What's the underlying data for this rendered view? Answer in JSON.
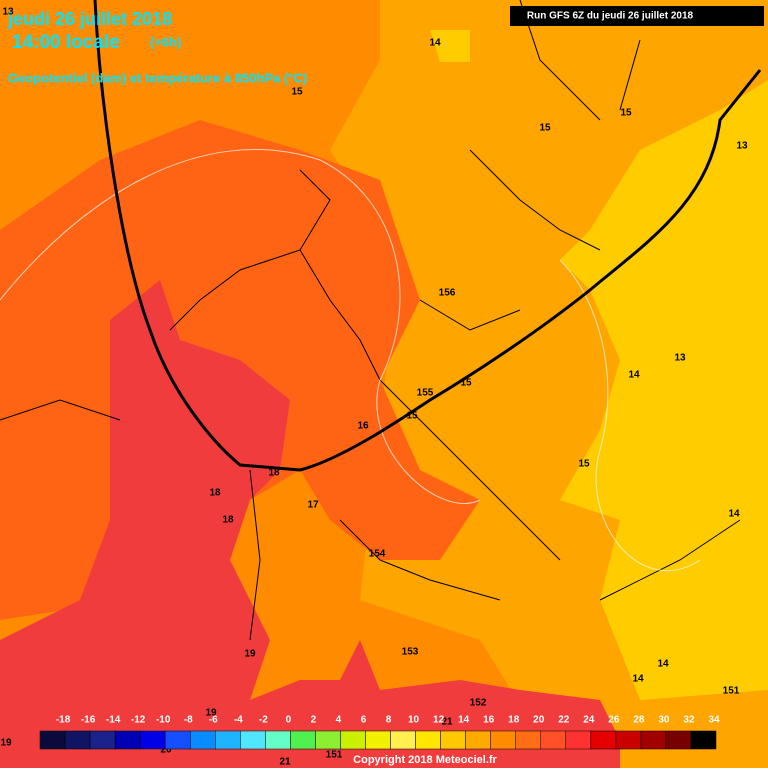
{
  "header": {
    "date": "jeudi 26 juillet 2018",
    "time": "14:00 locale",
    "offset": "(+6h)",
    "subtitle": "Geopotentiel (dam) et température à 850hPa (°C)",
    "run": "Run GFS 6Z du jeudi 26 juillet 2018"
  },
  "labels": [
    "13",
    "14",
    "15",
    "15",
    "15",
    "13",
    "156",
    "13",
    "14",
    "15",
    "155",
    "16",
    "15",
    "15",
    "18",
    "18",
    "17",
    "18",
    "14",
    "154",
    "19",
    "153",
    "14",
    "14",
    "151",
    "152",
    "19",
    "21",
    "151",
    "20",
    "21",
    "19"
  ],
  "legend": {
    "values": [
      -18,
      -16,
      -14,
      -12,
      -10,
      -8,
      -6,
      -4,
      -2,
      0,
      2,
      4,
      6,
      8,
      10,
      12,
      14,
      16,
      18,
      20,
      22,
      24,
      26,
      28,
      30,
      32,
      34
    ],
    "colors": [
      "#0a0a3c",
      "#0f1464",
      "#1a238c",
      "#0000b4",
      "#0000e6",
      "#1450ff",
      "#0a8cff",
      "#1eb4ff",
      "#50e6ff",
      "#64ffc8",
      "#50f050",
      "#8cf032",
      "#c8f000",
      "#f0f000",
      "#fff050",
      "#ffe600",
      "#ffc800",
      "#ffaa00",
      "#ff8c00",
      "#ff6e14",
      "#ff5028",
      "#ff3232",
      "#e60000",
      "#c80000",
      "#a00000",
      "#780000",
      "#000000"
    ]
  },
  "footer": "Copyright 2018 Meteociel.fr"
}
